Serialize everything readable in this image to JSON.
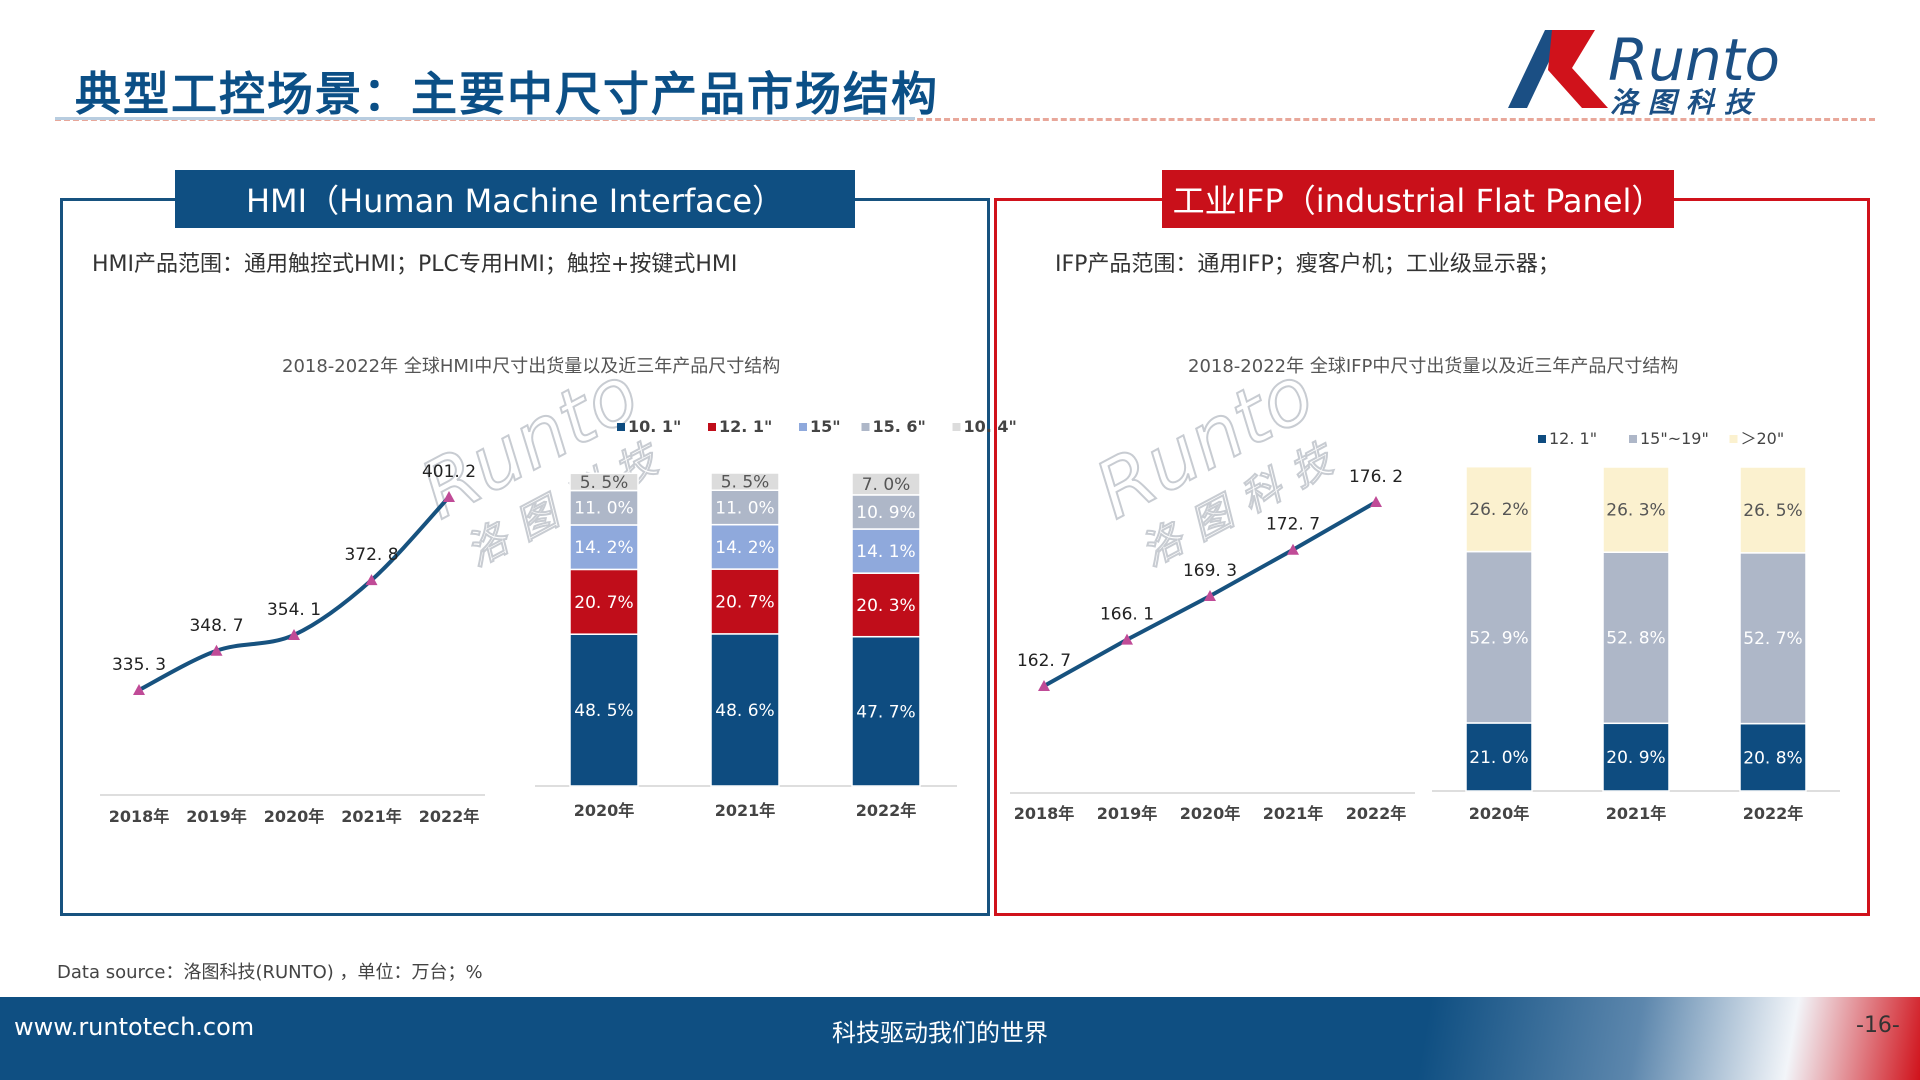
{
  "header": {
    "title": "典型工控场景：主要中尺寸产品市场结构",
    "logo_text": "Runto",
    "logo_cn": "洛图科技"
  },
  "hmi": {
    "heading": "HMI（Human Machine Interface）",
    "scope": "HMI产品范围：通用触控式HMI；PLC专用HMI；触控+按键式HMI"
  },
  "ifp": {
    "heading": "工业IFP（industrial Flat Panel）",
    "scope": "IFP产品范围：通用IFP；瘦客户机；工业级显示器；"
  },
  "chart_data": [
    {
      "id": "hmi",
      "title": "2018-2022年 全球HMI中尺寸出货量以及近三年产品尺寸结构",
      "line": {
        "type": "line",
        "categories": [
          "2018年",
          "2019年",
          "2020年",
          "2021年",
          "2022年"
        ],
        "values": [
          335.3,
          348.7,
          354.1,
          372.8,
          401.2
        ],
        "value_labels": [
          "335. 3",
          "348. 7",
          "354. 1",
          "372. 8",
          "401. 2"
        ],
        "smooth": true,
        "color": "#17527f",
        "marker_color": "#c04b97"
      },
      "bars": {
        "type": "bar",
        "stacked": true,
        "percent": true,
        "categories": [
          "2020年",
          "2021年",
          "2022年"
        ],
        "series": [
          {
            "name": "10. 1\"",
            "color": "#0e4c80",
            "label_color": "#ffffff",
            "values": [
              48.5,
              48.6,
              47.7
            ],
            "labels": [
              "48. 5%",
              "48. 6%",
              "47. 7%"
            ]
          },
          {
            "name": "12. 1\"",
            "color": "#c00d1a",
            "label_color": "#ffffff",
            "values": [
              20.7,
              20.7,
              20.3
            ],
            "labels": [
              "20. 7%",
              "20. 7%",
              "20. 3%"
            ]
          },
          {
            "name": "15\"",
            "color": "#8fa9dc",
            "label_color": "#ffffff",
            "values": [
              14.2,
              14.2,
              14.1
            ],
            "labels": [
              "14. 2%",
              "14. 2%",
              "14. 1%"
            ]
          },
          {
            "name": "15. 6\"",
            "color": "#aeb7c8",
            "label_color": "#ffffff",
            "values": [
              11.0,
              11.0,
              10.9
            ],
            "labels": [
              "11. 0%",
              "11. 0%",
              "10. 9%"
            ]
          },
          {
            "name": "10. 4\"",
            "color": "#dcdcdc",
            "label_color": "#555555",
            "values": [
              5.5,
              5.5,
              7.0
            ],
            "labels": [
              "5. 5%",
              "5. 5%",
              "7. 0%"
            ]
          }
        ],
        "legend_position": "top-right"
      }
    },
    {
      "id": "ifp",
      "title": "2018-2022年 全球IFP中尺寸出货量以及近三年产品尺寸结构",
      "line": {
        "type": "line",
        "categories": [
          "2018年",
          "2019年",
          "2020年",
          "2021年",
          "2022年"
        ],
        "values": [
          162.7,
          166.1,
          169.3,
          172.7,
          176.2
        ],
        "value_labels": [
          "162. 7",
          "166. 1",
          "169. 3",
          "172. 7",
          "176. 2"
        ],
        "smooth": false,
        "color": "#17527f",
        "marker_color": "#c04b97"
      },
      "bars": {
        "type": "bar",
        "stacked": true,
        "percent": true,
        "categories": [
          "2020年",
          "2021年",
          "2022年"
        ],
        "series": [
          {
            "name": "12. 1\"",
            "color": "#0e4c80",
            "label_color": "#ffffff",
            "values": [
              21.0,
              20.9,
              20.8
            ],
            "labels": [
              "21. 0%",
              "20. 9%",
              "20. 8%"
            ]
          },
          {
            "name": "15\"~19\"",
            "color": "#aeb7c8",
            "label_color": "#ffffff",
            "values": [
              52.9,
              52.8,
              52.7
            ],
            "labels": [
              "52. 9%",
              "52. 8%",
              "52. 7%"
            ]
          },
          {
            "name": "＞20\"",
            "color": "#fbf1cf",
            "label_color": "#555555",
            "values": [
              26.2,
              26.3,
              26.5
            ],
            "labels": [
              "26. 2%",
              "26. 3%",
              "26. 5%"
            ]
          }
        ],
        "legend_position": "top"
      }
    }
  ],
  "source": "Data source：洛图科技(RUNTO) ，单位：万台；%",
  "footer": {
    "url": "www.runtotech.com",
    "slogan": "科技驱动我们的世界",
    "page": "-16-"
  }
}
